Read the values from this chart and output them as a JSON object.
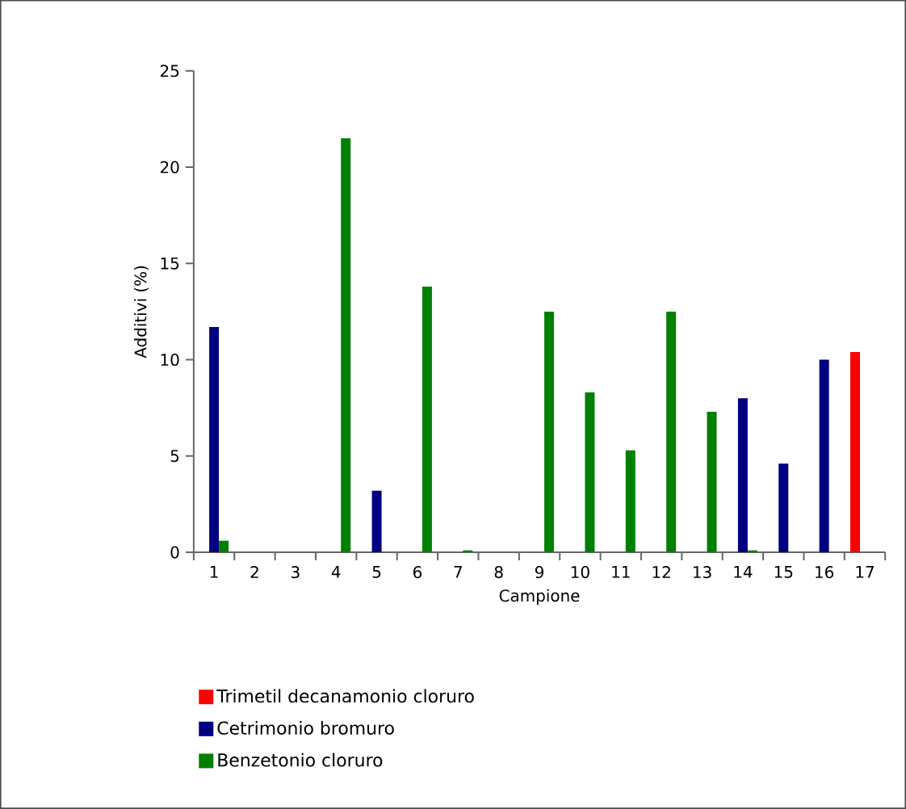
{
  "chart_data": {
    "type": "bar",
    "xlabel": "Campione",
    "ylabel": "Additivi (%)",
    "categories": [
      "1",
      "2",
      "3",
      "4",
      "5",
      "6",
      "7",
      "8",
      "9",
      "10",
      "11",
      "12",
      "13",
      "14",
      "15",
      "16",
      "17"
    ],
    "series": [
      {
        "name": "Trimetil decanamonio cloruro",
        "color": "#ff0000",
        "values": [
          null,
          null,
          null,
          null,
          null,
          null,
          null,
          null,
          null,
          null,
          null,
          null,
          null,
          null,
          null,
          null,
          10.4
        ]
      },
      {
        "name": "Cetrimonio bromuro",
        "color": "#000080",
        "values": [
          11.7,
          null,
          null,
          null,
          3.2,
          null,
          null,
          null,
          null,
          null,
          null,
          null,
          null,
          8.0,
          4.6,
          10.0,
          null
        ]
      },
      {
        "name": "Benzetonio cloruro",
        "color": "#008000",
        "values": [
          0.6,
          null,
          null,
          21.5,
          null,
          13.8,
          0.1,
          null,
          12.5,
          8.3,
          5.3,
          12.5,
          7.3,
          0.1,
          null,
          null,
          null
        ]
      }
    ],
    "ylim": [
      0,
      25
    ],
    "yticks": [
      0,
      5,
      10,
      15,
      20,
      25
    ],
    "legend": "bottom"
  }
}
